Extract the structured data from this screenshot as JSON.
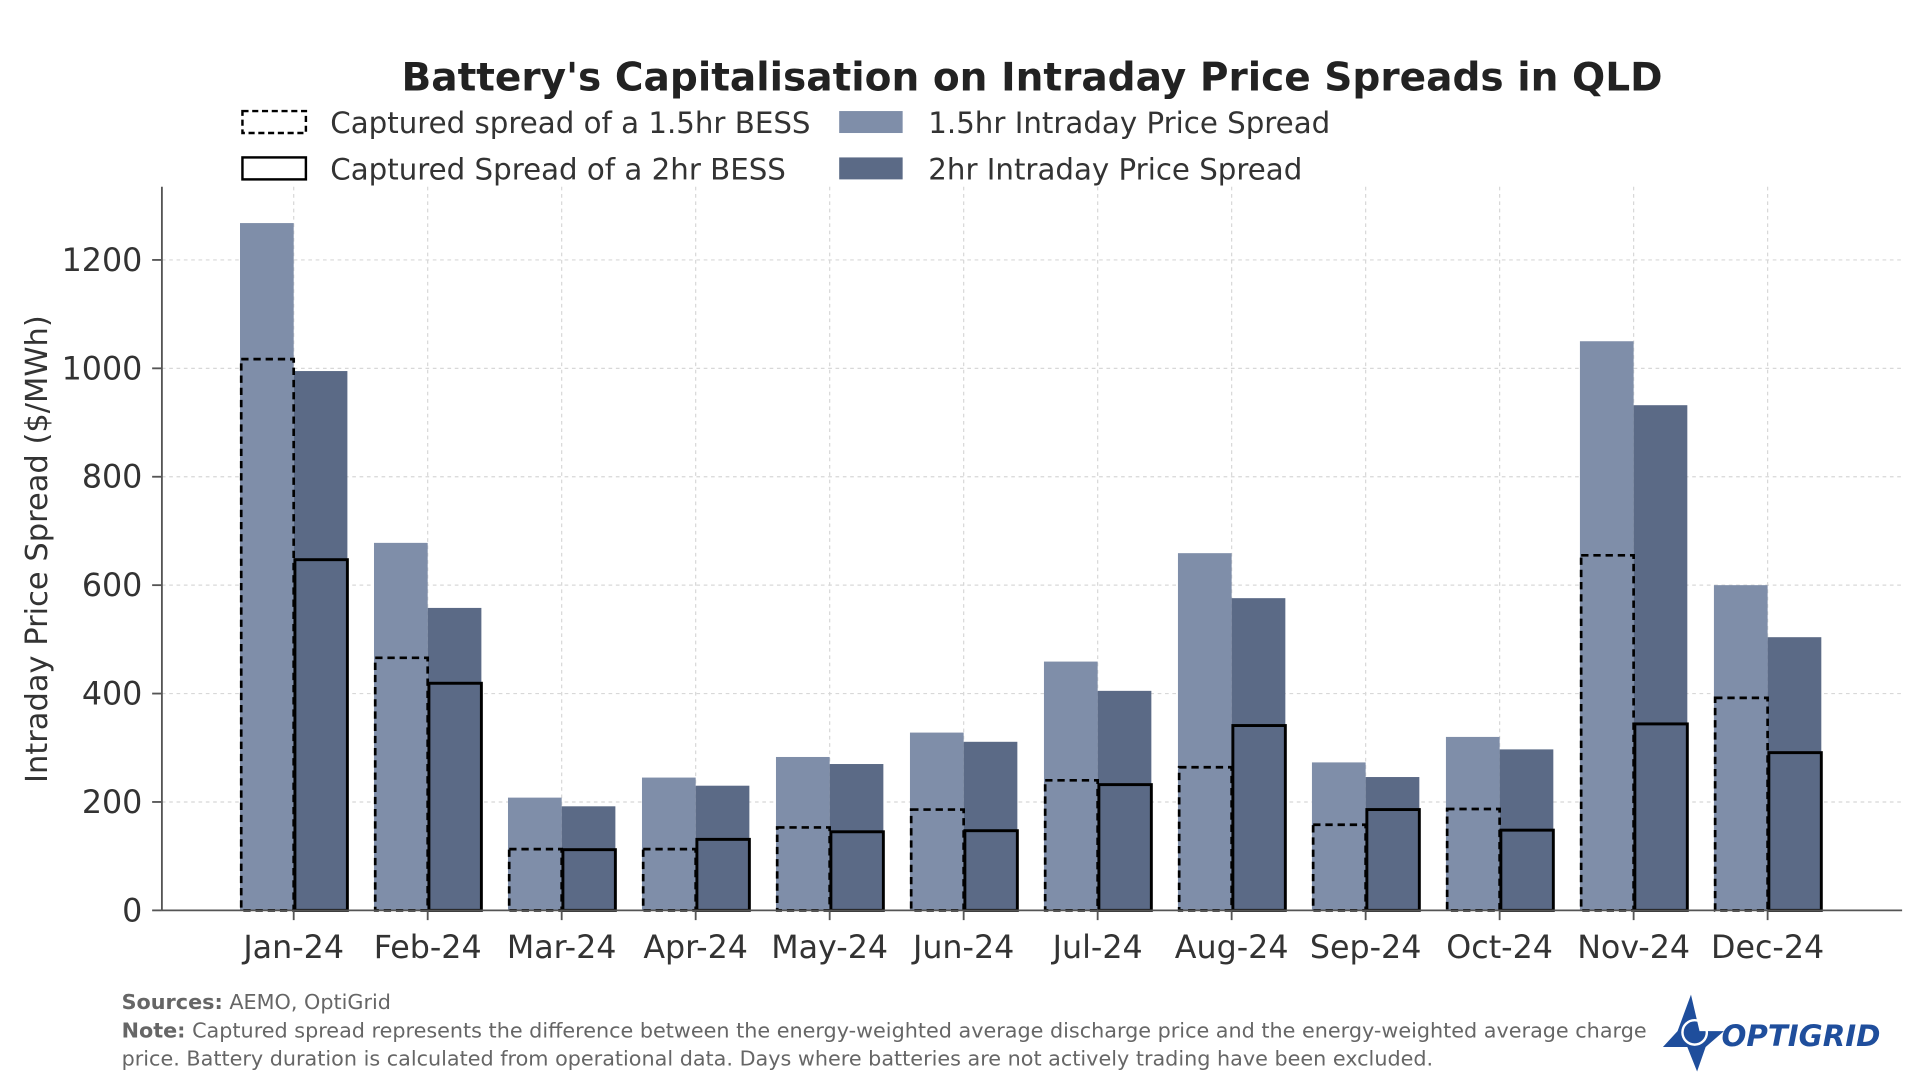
{
  "chart_data": {
    "type": "bar",
    "title": "Battery's Capitalisation on Intraday Price Spreads in QLD",
    "xlabel": "",
    "ylabel": "Intraday Price Spread ($/MWh)",
    "ylim": [
      0,
      1300
    ],
    "yticks": [
      "0",
      "200",
      "400",
      "600",
      "800",
      "1000",
      "1200"
    ],
    "grid": true,
    "legend_position": "top",
    "categories": [
      "Jan-24",
      "Feb-24",
      "Mar-24",
      "Apr-24",
      "May-24",
      "Jun-24",
      "Jul-24",
      "Aug-24",
      "Sep-24",
      "Oct-24",
      "Nov-24",
      "Dec-24"
    ],
    "series": [
      {
        "name": "1.5hr Intraday Price Spread",
        "style": "filled",
        "color": "#7f8ea9",
        "values": [
          1268,
          678,
          208,
          245,
          283,
          328,
          459,
          659,
          273,
          320,
          1050,
          600
        ]
      },
      {
        "name": "2hr Intraday Price Spread",
        "style": "filled",
        "color": "#5b6a86",
        "values": [
          995,
          558,
          192,
          230,
          270,
          311,
          405,
          576,
          246,
          297,
          932,
          504
        ]
      },
      {
        "name": "Captured spread of a 1.5hr BESS",
        "style": "dashed-outline",
        "color": "#000000",
        "values": [
          1017,
          466,
          113,
          113,
          153,
          186,
          240,
          264,
          158,
          187,
          655,
          392
        ]
      },
      {
        "name": "Captured Spread of a 2hr BESS",
        "style": "solid-outline",
        "color": "#000000",
        "values": [
          647,
          419,
          112,
          131,
          145,
          147,
          232,
          341,
          186,
          148,
          344,
          291
        ]
      }
    ]
  },
  "footer": {
    "sources_label": "Sources:",
    "sources_text": "AEMO, OptiGrid",
    "note_label": "Note:",
    "note_line1": "Captured spread represents the difference between the energy-weighted average discharge price and the energy-weighted average charge",
    "note_line2": "price. Battery duration is calculated from operational data. Days where batteries are not actively trading have been excluded."
  },
  "logo": {
    "text": "OPTIGRID",
    "color": "#1f4e9c"
  }
}
